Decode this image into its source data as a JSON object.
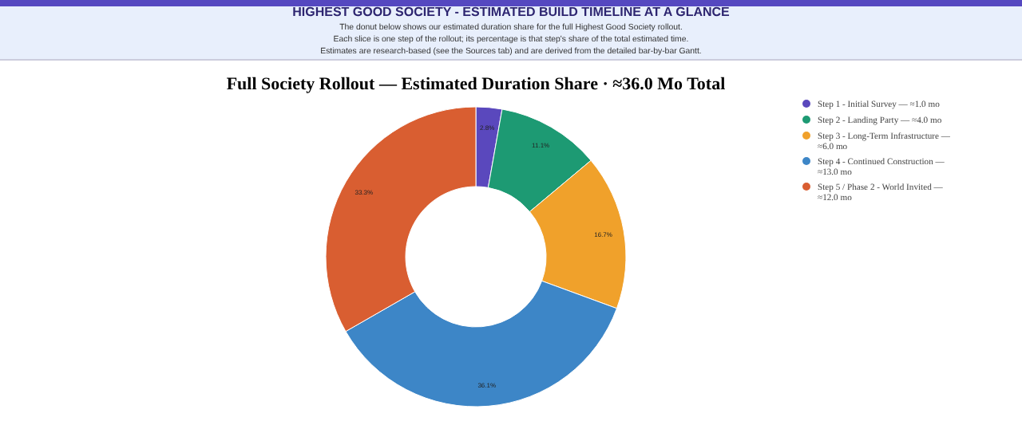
{
  "chart_data": {
    "type": "donut",
    "title": "Full Society Rollout — Estimated Duration Share · ≈36.0 Mo Total",
    "annotations": [
      "HIGHEST GOOD SOCIETY - ESTIMATED BUILD TIMELINE AT A GLANCE",
      "The donut below shows our estimated duration share for the full Highest Good Society rollout.",
      "Each slice is one step of the rollout; its percentage is that step's share of the total estimated time.",
      "Estimates are research-based (see the Sources tab) and are derived from the detailed bar-by-bar Gantt."
    ],
    "categories": [
      "Step 1 - Initial Survey — ≈1.0 mo",
      "Step 2 - Landing Party — ≈4.0 mo",
      "Step 3 - Long-Term Infrastructure — ≈6.0 mo",
      "Step 4 - Continued Construction — ≈13.0 mo",
      "Step 5 / Phase 2 - World Invited — ≈12.0 mo"
    ],
    "values": [
      2.8,
      11.1,
      16.7,
      36.1,
      33.3
    ],
    "value_labels": [
      "2.8%",
      "11.1%",
      "16.7%",
      "36.1%",
      "33.3%"
    ],
    "colors": [
      "#5a48bd",
      "#1d9a73",
      "#f0a12b",
      "#3d86c7",
      "#d95e31"
    ],
    "legend": "top right"
  }
}
